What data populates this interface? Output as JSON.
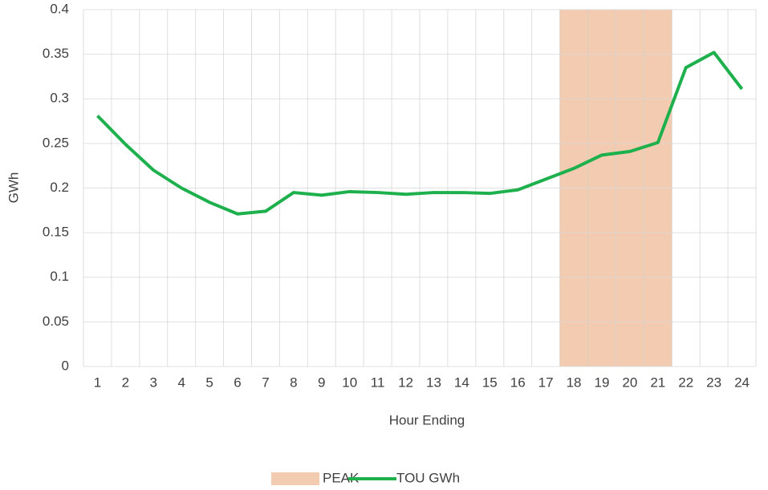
{
  "chart_data": {
    "type": "bar-line",
    "x_label": "Hour Ending",
    "y_label": "GWh",
    "categories": [
      "1",
      "2",
      "3",
      "4",
      "5",
      "6",
      "7",
      "8",
      "9",
      "10",
      "11",
      "12",
      "13",
      "14",
      "15",
      "16",
      "17",
      "18",
      "19",
      "20",
      "21",
      "22",
      "23",
      "24"
    ],
    "series": [
      {
        "name": "PEAK",
        "type": "bar",
        "color": "#f2cbb0",
        "values": [
          null,
          null,
          null,
          null,
          null,
          null,
          null,
          null,
          null,
          null,
          null,
          null,
          null,
          null,
          null,
          null,
          null,
          0.4,
          0.4,
          0.4,
          0.4,
          null,
          null,
          null
        ]
      },
      {
        "name": "TOU GWh",
        "type": "line",
        "color": "#1fb04e",
        "values": [
          0.281,
          0.249,
          0.22,
          0.2,
          0.184,
          0.171,
          0.174,
          0.195,
          0.192,
          0.196,
          0.195,
          0.193,
          0.195,
          0.195,
          0.194,
          0.198,
          0.21,
          0.222,
          0.237,
          0.241,
          0.251,
          0.335,
          0.352,
          0.311
        ]
      }
    ],
    "ylim": [
      0,
      0.4
    ],
    "yticks": [
      0,
      0.05,
      0.1,
      0.15,
      0.2,
      0.25,
      0.3,
      0.35,
      0.4
    ],
    "grid": true,
    "legend": "bottom"
  }
}
